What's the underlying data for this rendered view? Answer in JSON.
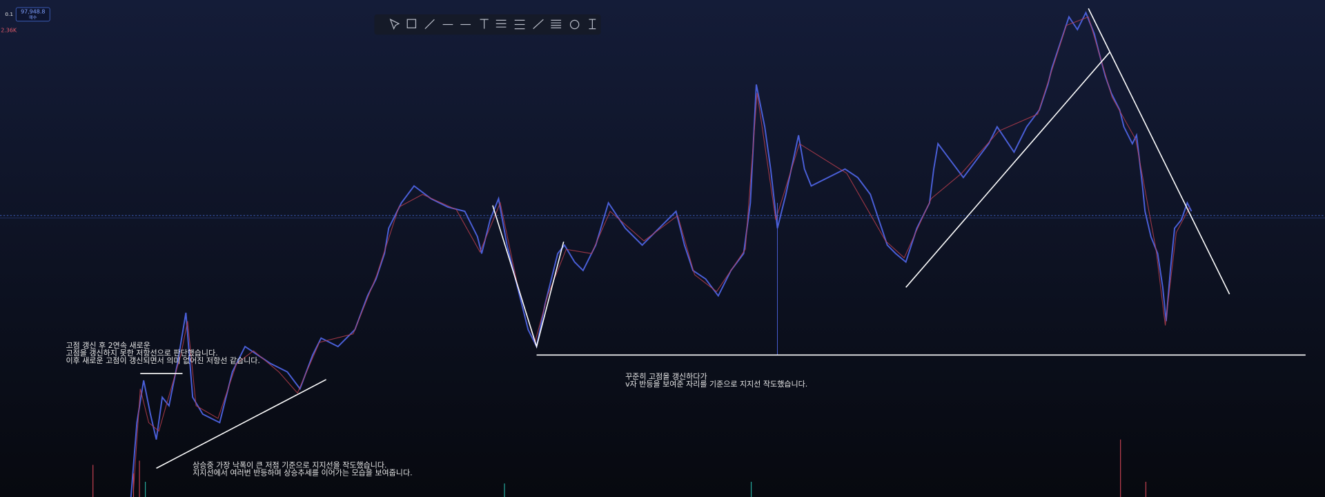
{
  "header": {
    "interval": "0.1",
    "price": "97,948.8",
    "volume": "2.36K"
  },
  "notes": [
    {
      "lines": [
        "고점 갱신 후 2연속 새로운",
        "고점을 갱신하지 못한 저항선으로 판단했습니다.",
        "이후 새로운 고점이 갱신되면서 의미 없어진 저항선 같습니다."
      ]
    },
    {
      "lines": [
        "꾸준히 고점을 갱신하다가",
        "v자 반등을 보여준 자리를 기준으로 지지선 작도했습니다."
      ]
    },
    {
      "lines": [
        "상승중 가장 낙폭이 큰 저점 기준으로 지지선을 작도했습니다.",
        "지지선에서 여러번 반등하며 상승추세를 이어가는 모습을 보여줍니다."
      ]
    }
  ]
}
